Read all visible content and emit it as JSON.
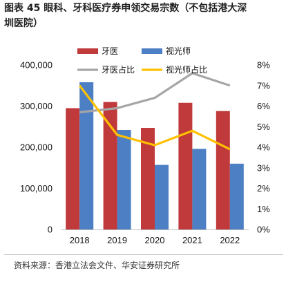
{
  "figure": {
    "title_line1": "图表 45  眼科、牙科医疗券申领交易宗数（不包括港大深",
    "title_line2": "圳医院）",
    "source": "资料来源：香港立法会文件、华安证券研究所"
  },
  "chart_data": {
    "type": "bar",
    "categories": [
      "2018",
      "2019",
      "2020",
      "2021",
      "2022"
    ],
    "series": [
      {
        "name": "牙医",
        "kind": "bar",
        "axis": "left",
        "color": "#c0393b",
        "values": [
          295000,
          310000,
          247000,
          308000,
          288000
        ]
      },
      {
        "name": "视光师",
        "kind": "bar",
        "axis": "left",
        "color": "#4d7fc4",
        "values": [
          358000,
          242000,
          157000,
          196000,
          160000
        ]
      },
      {
        "name": "牙医占比",
        "kind": "line",
        "axis": "right",
        "color": "#a6a6a6",
        "values": [
          5.7,
          5.9,
          6.4,
          7.6,
          7.0
        ]
      },
      {
        "name": "视光师占比",
        "kind": "line",
        "axis": "right",
        "color": "#ffc000",
        "values": [
          7.0,
          4.6,
          4.1,
          4.8,
          3.9
        ]
      }
    ],
    "y_left": {
      "min": 0,
      "max": 400000,
      "ticks": [
        "0",
        "100,000",
        "200,000",
        "300,000",
        "400,000"
      ]
    },
    "y_right": {
      "min": 0,
      "max": 8,
      "ticks": [
        "0%",
        "1%",
        "2%",
        "3%",
        "4%",
        "5%",
        "6%",
        "7%",
        "8%"
      ]
    },
    "grid": false,
    "legend": "top"
  }
}
